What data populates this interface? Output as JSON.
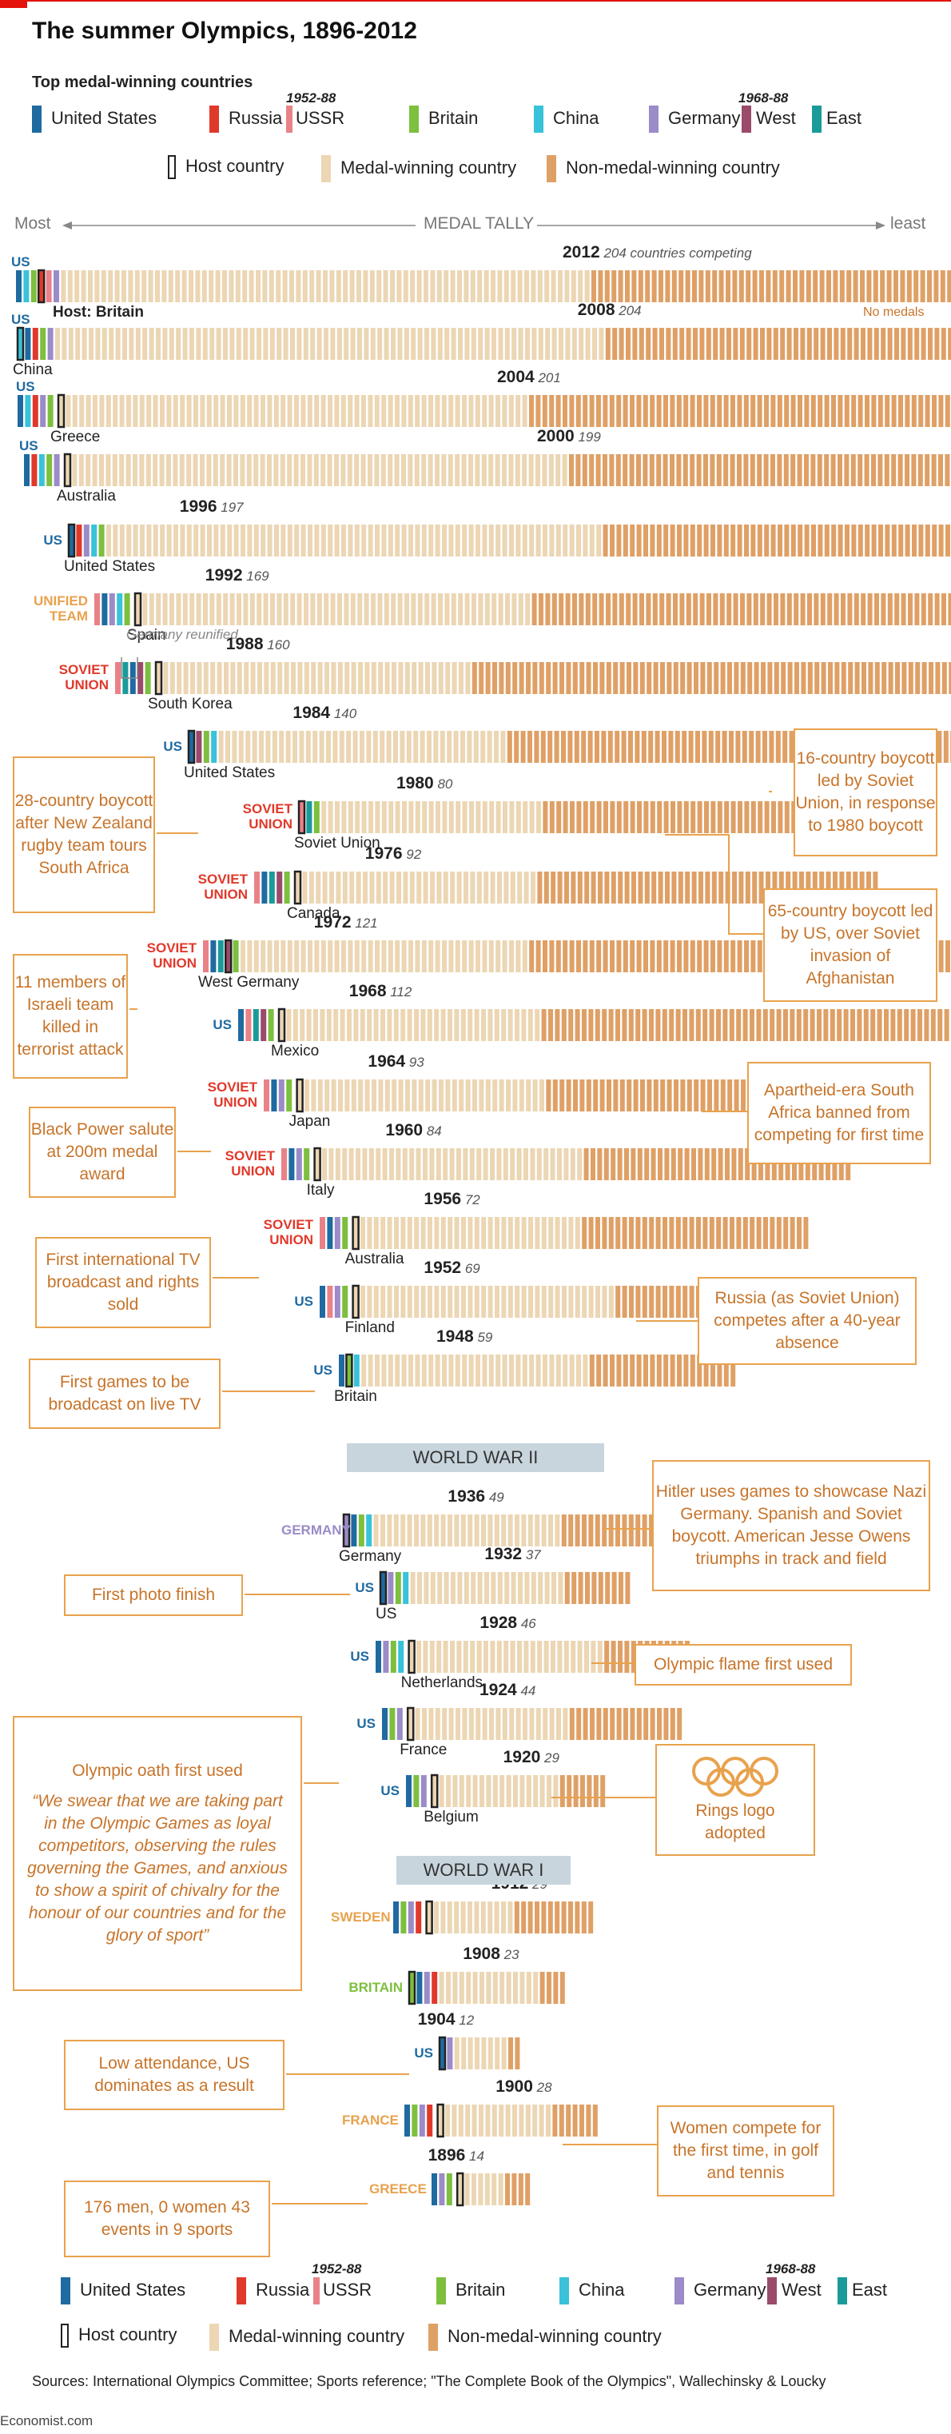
{
  "title": "The summer Olympics, 1896-2012",
  "subtitle": "Top medal-winning countries",
  "legend": {
    "countries": [
      {
        "label": "United States",
        "color": "#1f6aa0"
      },
      {
        "label": "Russia",
        "color": "#e0392b"
      },
      {
        "label": "USSR",
        "color": "#e98288"
      },
      {
        "label": "Britain",
        "color": "#7dbf3e"
      },
      {
        "label": "China",
        "color": "#39c2d9"
      },
      {
        "label": "Germany",
        "color": "#9b8bc8"
      },
      {
        "label": "West",
        "color": "#9a4a6a"
      },
      {
        "label": "East",
        "color": "#1b9a9a"
      }
    ],
    "ussr_years": "1952-88",
    "germany_years": "1968-88",
    "host": "Host country",
    "medal": "Medal-winning country",
    "nonmedal": "Non-medal-winning country"
  },
  "axis": {
    "most": "Most",
    "medal_tally": "MEDAL TALLY",
    "least": "least"
  },
  "colors": {
    "us": "#1f6aa0",
    "russia": "#e0392b",
    "ussr": "#e98288",
    "britain": "#7dbf3e",
    "china": "#39c2d9",
    "germany": "#9b8bc8",
    "west": "#9a4a6a",
    "east": "#1b9a9a",
    "medal": "#ecd6b3",
    "nonmedal": "#dfa066",
    "annot": "#e8a24d",
    "annot_text": "#c7742a"
  },
  "chart_data": {
    "type": "bar",
    "note": "Each row is one Games; bars ordered by medal tally from most (left) to least (right); coloured bars mark the top countries shown in the legend, outlined bar marks the host country",
    "rows": [
      {
        "year": "2012",
        "countries": "204",
        "suffix": "countries competing",
        "host": "Host: Britain",
        "leader": "US",
        "medal": 85,
        "extra": "No medals"
      },
      {
        "year": "2008",
        "countries": "204",
        "host": "China",
        "leader": "US",
        "medal": 87
      },
      {
        "year": "2004",
        "countries": "201",
        "host": "Greece",
        "leader": "US",
        "medal": 75
      },
      {
        "year": "2000",
        "countries": "199",
        "host": "Australia",
        "leader": "US",
        "medal": 80
      },
      {
        "year": "1996",
        "countries": "197",
        "host": "United States",
        "leader": "US",
        "medal": 79
      },
      {
        "year": "1992",
        "countries": "169",
        "host": "Spain",
        "leader": "UNIFIED TEAM",
        "medal": 64,
        "extra": "Germany reunified"
      },
      {
        "year": "1988",
        "countries": "160",
        "host": "South Korea",
        "leader": "SOVIET UNION",
        "medal": 52
      },
      {
        "year": "1984",
        "countries": "140",
        "host": "United States",
        "leader": "US",
        "medal": 47
      },
      {
        "year": "1980",
        "countries": "80",
        "host": "Soviet Union",
        "leader": "SOVIET UNION",
        "medal": 36
      },
      {
        "year": "1976",
        "countries": "92",
        "host": "Canada",
        "leader": "SOVIET UNION",
        "medal": 41
      },
      {
        "year": "1972",
        "countries": "121",
        "host": "West Germany",
        "leader": "SOVIET UNION",
        "medal": 48
      },
      {
        "year": "1968",
        "countries": "112",
        "host": "Mexico",
        "leader": "US",
        "medal": 44
      },
      {
        "year": "1964",
        "countries": "93",
        "host": "Japan",
        "leader": "SOVIET UNION",
        "medal": 41
      },
      {
        "year": "1960",
        "countries": "84",
        "host": "Italy",
        "leader": "SOVIET UNION",
        "medal": 44
      },
      {
        "year": "1956",
        "countries": "72",
        "host": "Australia",
        "leader": "SOVIET UNION",
        "medal": 38
      },
      {
        "year": "1952",
        "countries": "69",
        "host": "Finland",
        "leader": "US",
        "medal": 43
      },
      {
        "year": "1948",
        "countries": "59",
        "host": "Britain",
        "leader": "US",
        "medal": 37
      },
      {
        "year": "1936",
        "countries": "49",
        "host": "Germany",
        "leader": "GERMANY",
        "medal": 32
      },
      {
        "year": "1932",
        "countries": "37",
        "host": "US",
        "leader": "US",
        "medal": 27
      },
      {
        "year": "1928",
        "countries": "46",
        "host": "Netherlands",
        "leader": "US",
        "medal": 33
      },
      {
        "year": "1924",
        "countries": "44",
        "host": "France",
        "leader": "US",
        "medal": 27
      },
      {
        "year": "1920",
        "countries": "29",
        "host": "Belgium",
        "leader": "US",
        "medal": 22
      },
      {
        "year": "1912",
        "countries": "29",
        "host": "",
        "leader": "SWEDEN",
        "medal": 17
      },
      {
        "year": "1908",
        "countries": "23",
        "host": "",
        "leader": "BRITAIN",
        "medal": 19
      },
      {
        "year": "1904",
        "countries": "12",
        "host": "",
        "leader": "US",
        "medal": 10
      },
      {
        "year": "1900",
        "countries": "28",
        "host": "",
        "leader": "FRANCE",
        "medal": 21
      },
      {
        "year": "1896",
        "countries": "14",
        "host": "",
        "leader": "GREECE",
        "medal": 10
      }
    ]
  },
  "wars": {
    "ww2": "WORLD WAR II",
    "ww1": "WORLD WAR I"
  },
  "annotations": {
    "boycott_1984": "16-country boycott led by Soviet Union, in response to 1980 boycott",
    "boycott_1976": "28-country boycott after New Zealand rugby team tours South Africa",
    "boycott_1980": "65-country boycott led by US, over Soviet invasion of Afghanistan",
    "israeli_1972": "11 members of Israeli team killed in terrorist attack",
    "apartheid_1964": "Apartheid-era South Africa banned from competing for first time",
    "black_power_1968": "Black Power salute at 200m medal award",
    "tv_rights_1960": "First international TV broadcast and rights sold",
    "russia_1952": "Russia (as Soviet Union) competes after a 40-year absence",
    "live_tv_1948": "First games to be broadcast on live TV",
    "hitler_1936": "Hitler uses games to showcase Nazi Germany. Spanish and Soviet boycott. American Jesse Owens triumphs in track and field",
    "photo_finish_1932": "First photo finish",
    "flame_1928": "Olympic flame first used",
    "oath_title": "Olympic oath first used",
    "oath_text": "“We swear that we are taking part in the Olympic Games as loyal competitors, observing the rules governing the Games, and anxious to show a spirit of chivalry for the honour of our countries and for the glory of sport”",
    "rings_1920": "Rings logo adopted",
    "attendance_1904": "Low attendance, US dominates as a result",
    "women_1900": "Women compete for the first time, in golf and tennis",
    "events_1896": "176 men, 0 women 43 events in 9 sports"
  },
  "sources": "Sources: International Olympics Committee; Sports reference; \"The Complete Book of the Olympics\", Wallechinsky & Loucky",
  "credit": "Economist.com"
}
